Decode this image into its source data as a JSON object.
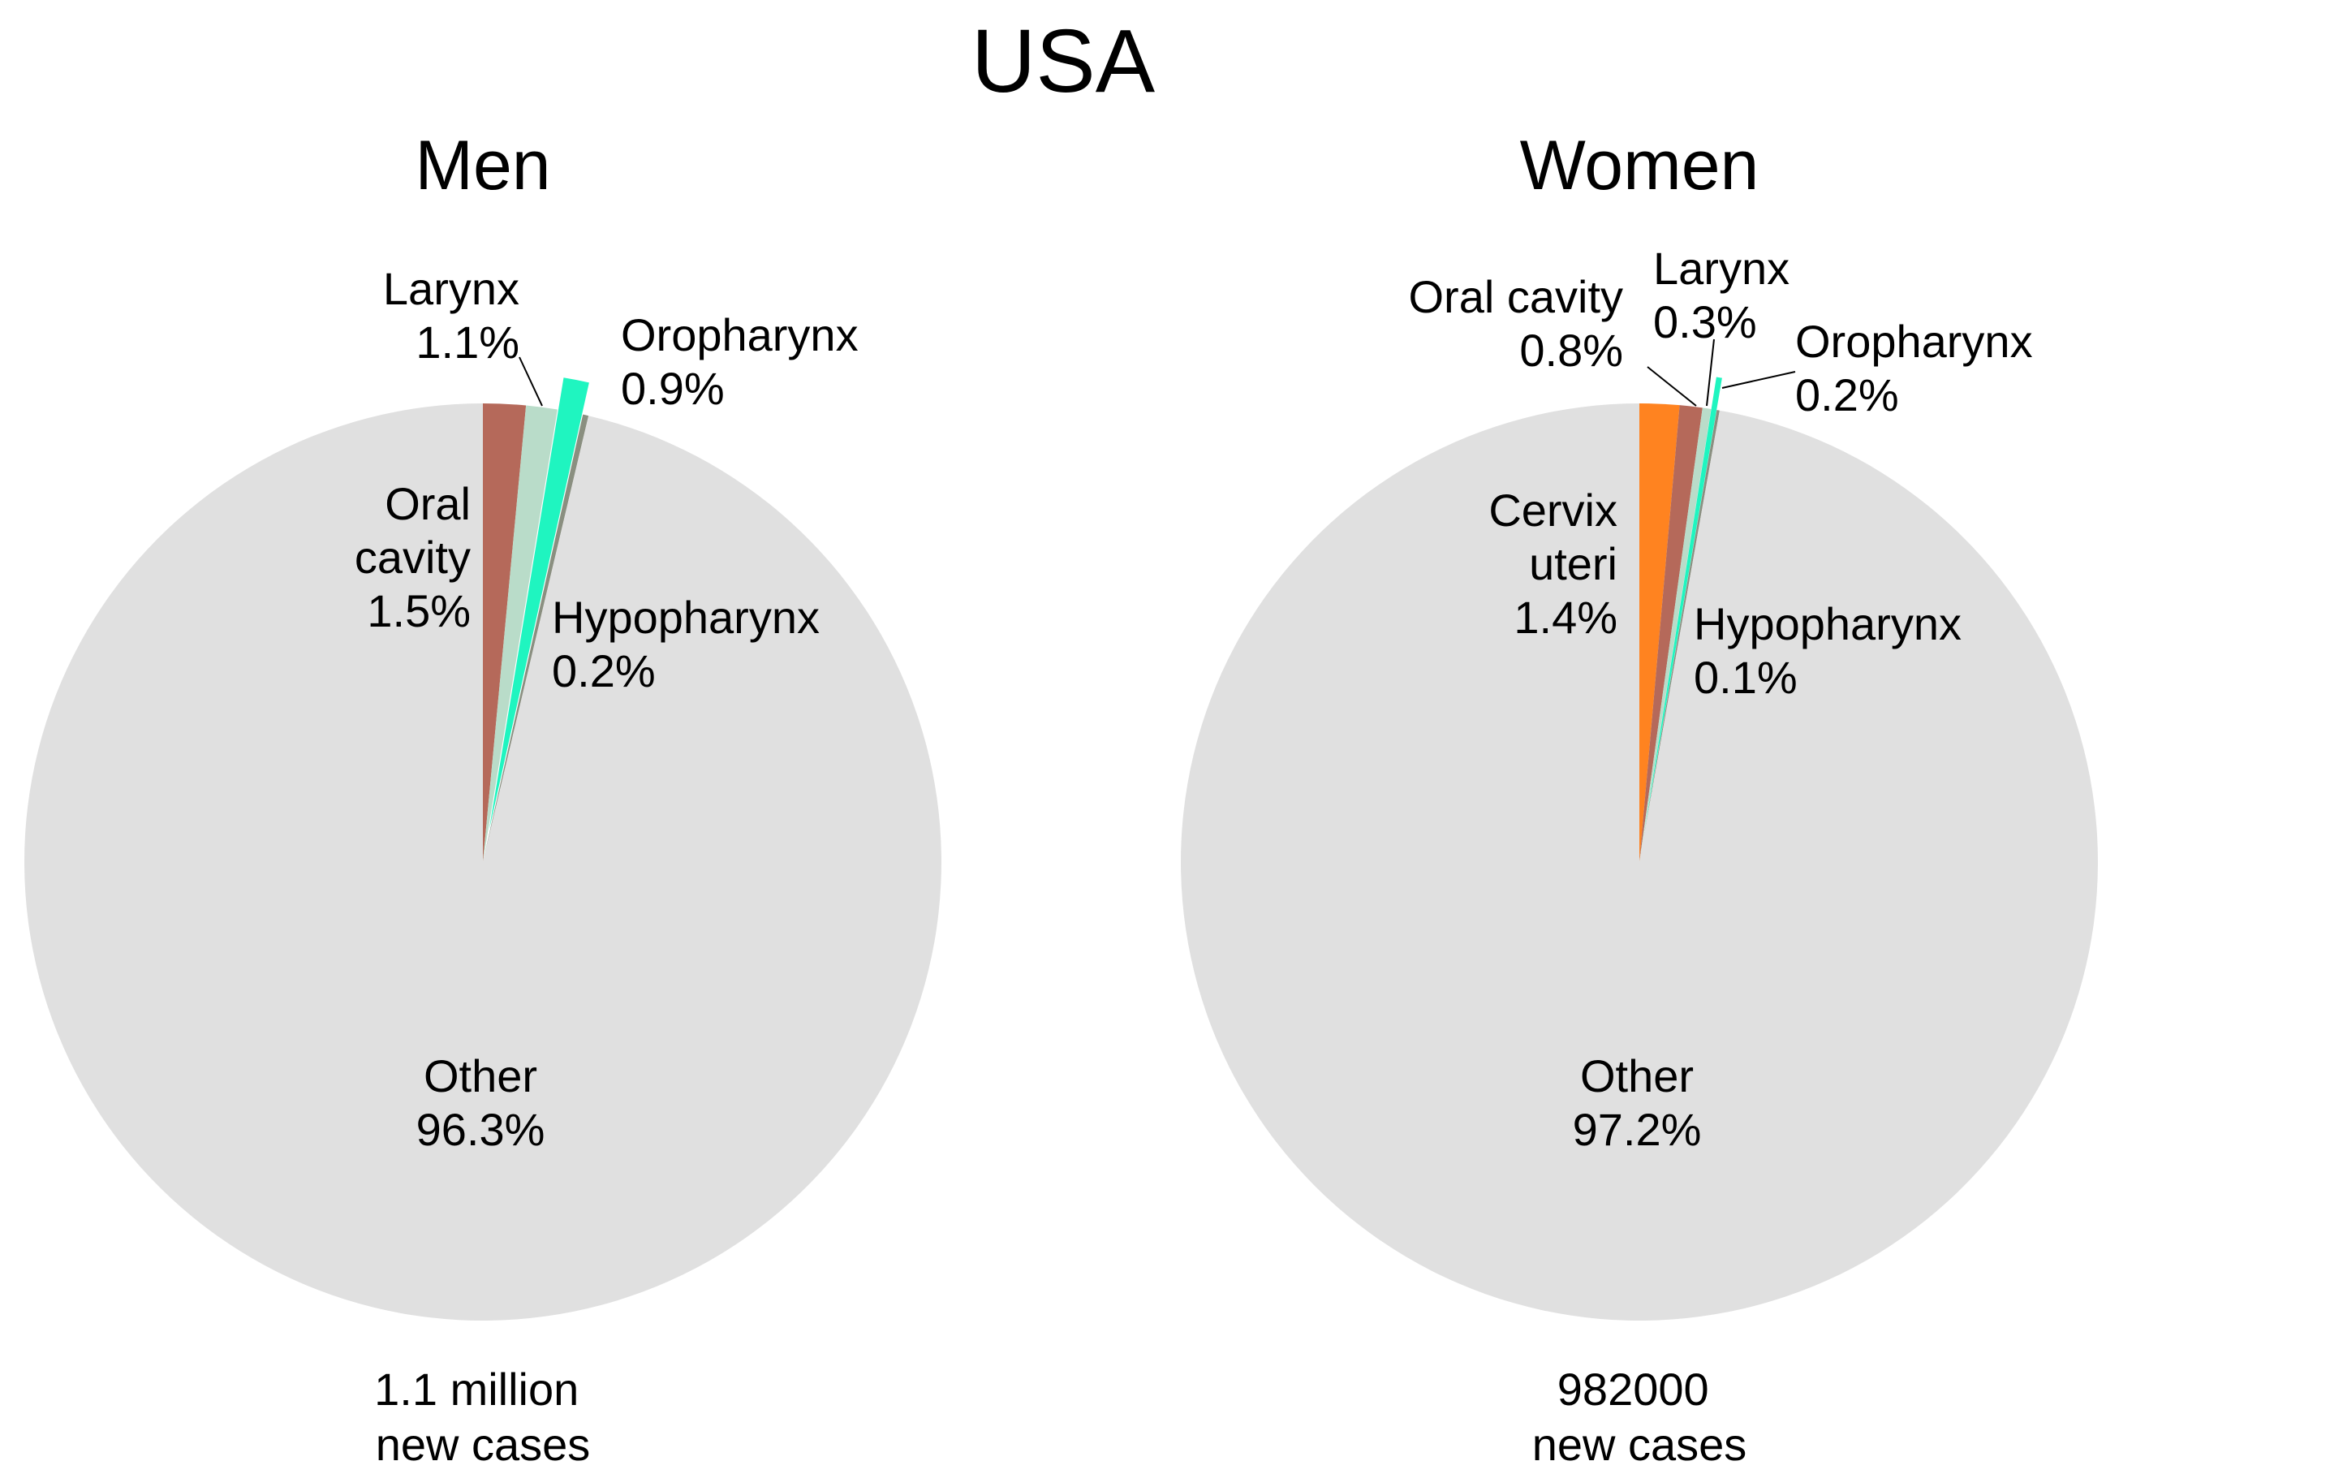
{
  "title": "USA",
  "chart_data": [
    {
      "type": "pie",
      "title": "Men",
      "total_label": [
        "1.1 million",
        "new cases"
      ],
      "slices": [
        {
          "name": "Oral cavity",
          "label_lines": [
            "Oral",
            "cavity"
          ],
          "value": 1.5,
          "value_label": "1.5%",
          "color": "#b5695a",
          "exploded": false
        },
        {
          "name": "Larynx",
          "label_lines": [
            "Larynx"
          ],
          "value": 1.1,
          "value_label": "1.1%",
          "color": "#b9dcc9",
          "exploded": false
        },
        {
          "name": "Oropharynx",
          "label_lines": [
            "Oropharynx"
          ],
          "value": 0.9,
          "value_label": "0.9%",
          "color": "#1ff5c0",
          "exploded": true
        },
        {
          "name": "Hypopharynx",
          "label_lines": [
            "Hypopharynx"
          ],
          "value": 0.2,
          "value_label": "0.2%",
          "color": "#8a8f80",
          "exploded": false
        },
        {
          "name": "Other",
          "label_lines": [
            "Other"
          ],
          "value": 96.3,
          "value_label": "96.3%",
          "color": "#e0e0e0",
          "exploded": false
        }
      ]
    },
    {
      "type": "pie",
      "title": "Women",
      "total_label": [
        "982000",
        "new cases"
      ],
      "slices": [
        {
          "name": "Cervix uteri",
          "label_lines": [
            "Cervix",
            "uteri"
          ],
          "value": 1.4,
          "value_label": "1.4%",
          "color": "#ff8320",
          "exploded": false
        },
        {
          "name": "Oral cavity",
          "label_lines": [
            "Oral cavity"
          ],
          "value": 0.8,
          "value_label": "0.8%",
          "color": "#b5695a",
          "exploded": false
        },
        {
          "name": "Larynx",
          "label_lines": [
            "Larynx"
          ],
          "value": 0.3,
          "value_label": "0.3%",
          "color": "#b9dcc9",
          "exploded": false
        },
        {
          "name": "Oropharynx",
          "label_lines": [
            "Oropharynx"
          ],
          "value": 0.2,
          "value_label": "0.2%",
          "color": "#1ff5c0",
          "exploded": true
        },
        {
          "name": "Hypopharynx",
          "label_lines": [
            "Hypopharynx"
          ],
          "value": 0.1,
          "value_label": "0.1%",
          "color": "#8a8f80",
          "exploded": false
        },
        {
          "name": "Other",
          "label_lines": [
            "Other"
          ],
          "value": 97.2,
          "value_label": "97.2%",
          "color": "#e0e0e0",
          "exploded": false
        }
      ]
    }
  ]
}
